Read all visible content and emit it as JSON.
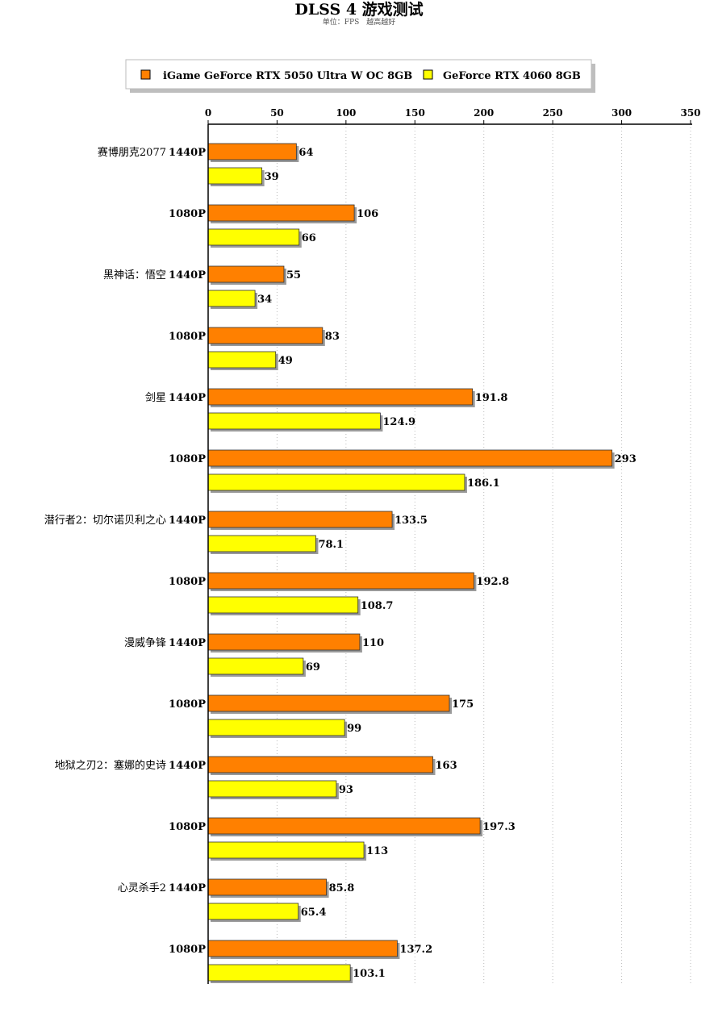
{
  "chart_data": {
    "type": "bar",
    "orientation": "horizontal",
    "title": "DLSS 4 游戏测试",
    "subtitle": "单位：FPS　越高越好",
    "xlim": [
      0,
      350
    ],
    "xticks": [
      0,
      50,
      100,
      150,
      200,
      250,
      300,
      350
    ],
    "grid": "vertical dotted",
    "legend_position": "top",
    "groups": [
      {
        "game": "赛博朋克2077",
        "resolution": "1440P"
      },
      {
        "game": "",
        "resolution": "1080P"
      },
      {
        "game": "黑神话：悟空",
        "resolution": "1440P"
      },
      {
        "game": "",
        "resolution": "1080P"
      },
      {
        "game": "剑星",
        "resolution": "1440P"
      },
      {
        "game": "",
        "resolution": "1080P"
      },
      {
        "game": "潜行者2：切尔诺贝利之心",
        "resolution": "1440P"
      },
      {
        "game": "",
        "resolution": "1080P"
      },
      {
        "game": "漫威争锋",
        "resolution": "1440P"
      },
      {
        "game": "",
        "resolution": "1080P"
      },
      {
        "game": "地狱之刃2：塞娜的史诗",
        "resolution": "1440P"
      },
      {
        "game": "",
        "resolution": "1080P"
      },
      {
        "game": "心灵杀手2",
        "resolution": "1440P"
      },
      {
        "game": "",
        "resolution": "1080P"
      }
    ],
    "series": [
      {
        "name": "iGame GeForce RTX 5050 Ultra W OC 8GB",
        "color": "#ff8000",
        "values": [
          64,
          106,
          55,
          83,
          191.8,
          293,
          133.5,
          192.8,
          110,
          175,
          163,
          197.3,
          85.8,
          137.2
        ],
        "labels": [
          "64",
          "106",
          "55",
          "83",
          "191.8",
          "293",
          "133.5",
          "192.8",
          "110",
          "175",
          "163",
          "197.3",
          "85.8",
          "137.2"
        ]
      },
      {
        "name": "GeForce RTX 4060 8GB",
        "color": "#ffff00",
        "values": [
          39,
          66,
          34,
          49,
          124.9,
          186.1,
          78.1,
          108.7,
          69,
          99,
          93,
          113,
          65.4,
          103.1
        ],
        "labels": [
          "39",
          "66",
          "34",
          "49",
          "124.9",
          "186.1",
          "78.1",
          "108.7",
          "69",
          "99",
          "93",
          "113",
          "65.4",
          "103.1"
        ]
      }
    ]
  }
}
